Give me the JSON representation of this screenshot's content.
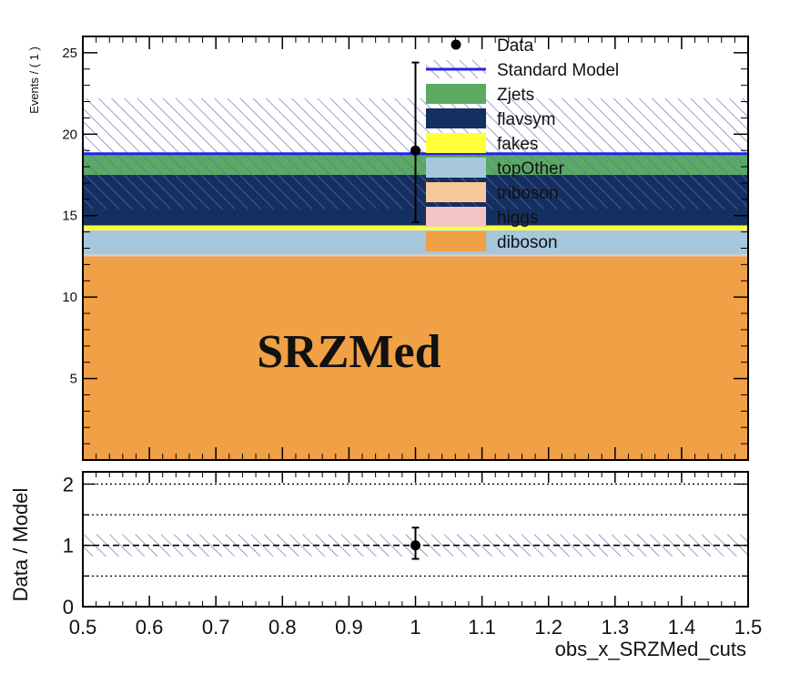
{
  "chart_data": [
    {
      "type": "stacked-histogram",
      "region_label": "SRZMed",
      "ylabel": "Events / ( 1 )",
      "xlim": [
        0.5,
        1.5
      ],
      "ylim": [
        0,
        26
      ],
      "x_ticks": [
        0.5,
        0.6,
        0.7,
        0.8,
        0.9,
        1,
        1.1,
        1.2,
        1.3,
        1.4,
        1.5
      ],
      "y_ticks": [
        5,
        10,
        15,
        20,
        25
      ],
      "y_tick_labels": [
        "5",
        "10",
        "15",
        "20",
        "25"
      ],
      "stack": [
        {
          "name": "diboson",
          "value": 12.5,
          "color": "#f0a045"
        },
        {
          "name": "higgs",
          "value": 0.05,
          "color": "#f3c4c4"
        },
        {
          "name": "triboson",
          "value": 0.05,
          "color": "#f6c89a"
        },
        {
          "name": "topOther",
          "value": 1.5,
          "color": "#a7c7dd"
        },
        {
          "name": "fakes",
          "value": 0.3,
          "color": "#ffff3a"
        },
        {
          "name": "flavsym",
          "value": 3.1,
          "color": "#143060"
        },
        {
          "name": "Zjets",
          "value": 1.3,
          "color": "#5aaa64"
        }
      ],
      "standard_model": {
        "name": "Standard Model",
        "total": 18.8,
        "unc_low": 15.4,
        "unc_high": 22.2,
        "color": "#2424e8"
      },
      "data_points": [
        {
          "x": 1.0,
          "y": 19,
          "err_low": 4.4,
          "err_high": 5.4
        }
      ],
      "legend": [
        "Data",
        "Standard Model",
        "Zjets",
        "flavsym",
        "fakes",
        "topOther",
        "triboson",
        "higgs",
        "diboson"
      ],
      "legend_position": "top-right"
    },
    {
      "type": "ratio",
      "ylabel": "Data / Model",
      "xlabel": "obs_x_SRZMed_cuts",
      "xlim": [
        0.5,
        1.5
      ],
      "ylim": [
        0,
        2.2
      ],
      "x_ticks": [
        0.5,
        0.6,
        0.7,
        0.8,
        0.9,
        1,
        1.1,
        1.2,
        1.3,
        1.4,
        1.5
      ],
      "x_tick_labels": [
        "0.5",
        "0.6",
        "0.7",
        "0.8",
        "0.9",
        "1",
        "1.1",
        "1.2",
        "1.3",
        "1.4",
        "1.5"
      ],
      "y_ticks": [
        0,
        1,
        2
      ],
      "y_tick_labels": [
        "0",
        "1",
        "2"
      ],
      "reference_lines": [
        0.5,
        1.0,
        1.5,
        2.0
      ],
      "band": {
        "low": 0.82,
        "high": 1.18
      },
      "data_points": [
        {
          "x": 1.0,
          "y": 1.0,
          "err_low": 0.22,
          "err_high": 0.29
        }
      ]
    }
  ]
}
